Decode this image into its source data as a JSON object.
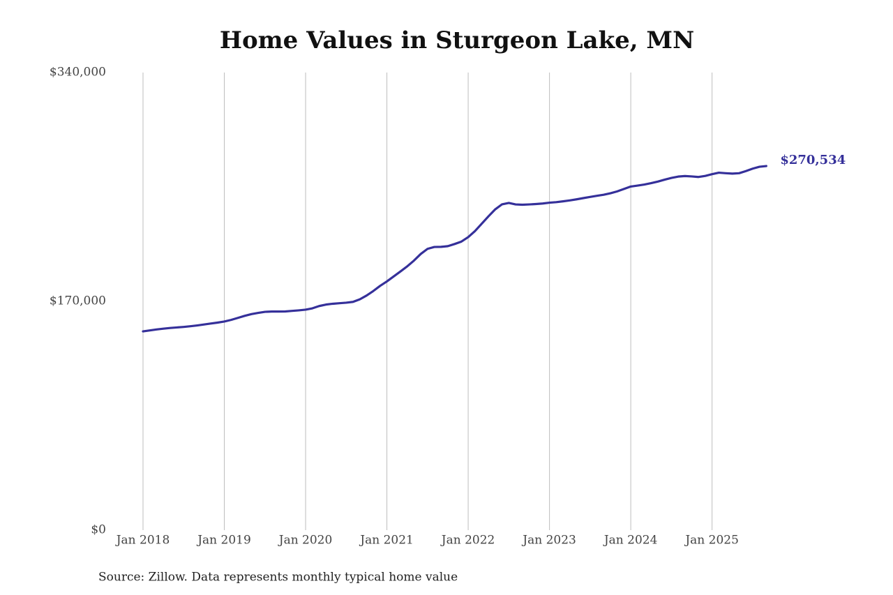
{
  "chart_data": {
    "type": "line",
    "title": "Home Values in Sturgeon Lake, MN",
    "source": "Source: Zillow. Data represents monthly typical home value",
    "categories": [
      "Jan 2018",
      null,
      null,
      null,
      null,
      null,
      null,
      null,
      null,
      null,
      null,
      null,
      "Jan 2019",
      null,
      null,
      null,
      null,
      null,
      null,
      null,
      null,
      null,
      null,
      null,
      "Jan 2020",
      null,
      null,
      null,
      null,
      null,
      null,
      null,
      null,
      null,
      null,
      null,
      "Jan 2021",
      null,
      null,
      null,
      null,
      null,
      null,
      null,
      null,
      null,
      null,
      null,
      "Jan 2022",
      null,
      null,
      null,
      null,
      null,
      null,
      null,
      null,
      null,
      null,
      null,
      "Jan 2023",
      null,
      null,
      null,
      null,
      null,
      null,
      null,
      null,
      null,
      null,
      null,
      "Jan 2024",
      null,
      null,
      null,
      null,
      null,
      null,
      null,
      null,
      null,
      null,
      null,
      "Jan 2025",
      null,
      null,
      null,
      null,
      null,
      null,
      null,
      null
    ],
    "values": [
      147700,
      148400,
      149100,
      149700,
      150200,
      150600,
      151000,
      151500,
      152100,
      152800,
      153500,
      154200,
      155000,
      156200,
      157700,
      159200,
      160500,
      161400,
      162200,
      162400,
      162400,
      162500,
      162900,
      163300,
      163800,
      164800,
      166500,
      167600,
      168200,
      168600,
      169000,
      169600,
      171500,
      174300,
      177700,
      181500,
      184800,
      188500,
      192200,
      196000,
      200300,
      205200,
      209000,
      210400,
      210500,
      211000,
      212600,
      214400,
      217700,
      222200,
      227700,
      233200,
      238400,
      242100,
      243100,
      242000,
      241800,
      242000,
      242300,
      242700,
      243300,
      243700,
      244300,
      245000,
      245800,
      246700,
      247600,
      248400,
      249200,
      250300,
      251700,
      253500,
      255300,
      256000,
      256800,
      257800,
      259000,
      260400,
      261700,
      262700,
      263100,
      262800,
      262400,
      263200,
      264500,
      265600,
      265200,
      264900,
      265200,
      266800,
      268600,
      270000,
      270534
    ],
    "value_labels": [
      null,
      null,
      null,
      null,
      null,
      null,
      null,
      null,
      null,
      null,
      null,
      null,
      null,
      null,
      null,
      null,
      null,
      null,
      null,
      null,
      null,
      null,
      null,
      null,
      null,
      null,
      null,
      null,
      null,
      null,
      null,
      null,
      null,
      null,
      null,
      null,
      null,
      null,
      null,
      null,
      null,
      null,
      null,
      null,
      null,
      null,
      null,
      null,
      null,
      null,
      null,
      null,
      null,
      null,
      null,
      null,
      null,
      null,
      null,
      null,
      null,
      null,
      null,
      null,
      null,
      null,
      null,
      null,
      null,
      null,
      null,
      null,
      null,
      null,
      null,
      null,
      null,
      null,
      null,
      null,
      null,
      null,
      null,
      null,
      null,
      null,
      null,
      null,
      null,
      null,
      null,
      null,
      "$270,534"
    ],
    "color": "#35309a",
    "ylim": [
      0,
      340000
    ],
    "yticks": [
      {
        "value": 0,
        "label": "$0"
      },
      {
        "value": 170000,
        "label": "$170,000"
      },
      {
        "value": 340000,
        "label": "$340,000"
      }
    ],
    "grid": "x"
  }
}
